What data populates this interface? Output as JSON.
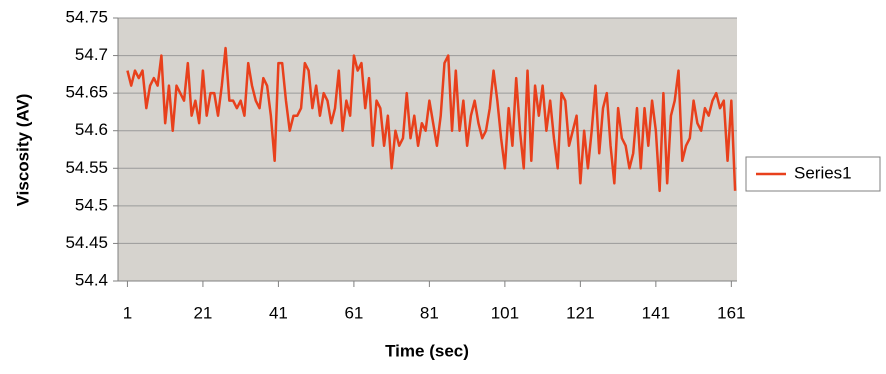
{
  "chart_data": {
    "type": "line",
    "x_label": "Time (sec)",
    "y_label": "Viscosity (AV)",
    "x": [
      1,
      2,
      3,
      4,
      5,
      6,
      7,
      8,
      9,
      10,
      11,
      12,
      13,
      14,
      15,
      16,
      17,
      18,
      19,
      20,
      21,
      22,
      23,
      24,
      25,
      26,
      27,
      28,
      29,
      30,
      31,
      32,
      33,
      34,
      35,
      36,
      37,
      38,
      39,
      40,
      41,
      42,
      43,
      44,
      45,
      46,
      47,
      48,
      49,
      50,
      51,
      52,
      53,
      54,
      55,
      56,
      57,
      58,
      59,
      60,
      61,
      62,
      63,
      64,
      65,
      66,
      67,
      68,
      69,
      70,
      71,
      72,
      73,
      74,
      75,
      76,
      77,
      78,
      79,
      80,
      81,
      82,
      83,
      84,
      85,
      86,
      87,
      88,
      89,
      90,
      91,
      92,
      93,
      94,
      95,
      96,
      97,
      98,
      99,
      100,
      101,
      102,
      103,
      104,
      105,
      106,
      107,
      108,
      109,
      110,
      111,
      112,
      113,
      114,
      115,
      116,
      117,
      118,
      119,
      120,
      121,
      122,
      123,
      124,
      125,
      126,
      127,
      128,
      129,
      130,
      131,
      132,
      133,
      134,
      135,
      136,
      137,
      138,
      139,
      140,
      141,
      142,
      143,
      144,
      145,
      146,
      147,
      148,
      149,
      150,
      151,
      152,
      153,
      154,
      155,
      156,
      157,
      158,
      159,
      160,
      161,
      162
    ],
    "series": [
      {
        "name": "Series1",
        "color": "#e8401c",
        "values": [
          54.68,
          54.66,
          54.68,
          54.67,
          54.68,
          54.63,
          54.66,
          54.67,
          54.66,
          54.7,
          54.61,
          54.66,
          54.6,
          54.66,
          54.65,
          54.64,
          54.69,
          54.62,
          54.64,
          54.61,
          54.68,
          54.62,
          54.65,
          54.65,
          54.62,
          54.66,
          54.71,
          54.64,
          54.64,
          54.63,
          54.64,
          54.62,
          54.69,
          54.66,
          54.64,
          54.63,
          54.67,
          54.66,
          54.62,
          54.56,
          54.69,
          54.69,
          54.64,
          54.6,
          54.62,
          54.62,
          54.63,
          54.69,
          54.68,
          54.63,
          54.66,
          54.62,
          54.65,
          54.64,
          54.61,
          54.63,
          54.68,
          54.6,
          54.64,
          54.62,
          54.7,
          54.68,
          54.69,
          54.63,
          54.67,
          54.58,
          54.64,
          54.63,
          54.58,
          54.62,
          54.55,
          54.6,
          54.58,
          54.59,
          54.65,
          54.59,
          54.62,
          54.58,
          54.61,
          54.6,
          54.64,
          54.61,
          54.58,
          54.62,
          54.69,
          54.7,
          54.6,
          54.68,
          54.6,
          54.64,
          54.58,
          54.62,
          54.64,
          54.61,
          54.59,
          54.6,
          54.63,
          54.68,
          54.64,
          54.59,
          54.55,
          54.63,
          54.58,
          54.67,
          54.6,
          54.55,
          54.68,
          54.56,
          54.66,
          54.62,
          54.66,
          54.6,
          54.64,
          54.59,
          54.55,
          54.65,
          54.64,
          54.58,
          54.6,
          54.62,
          54.53,
          54.6,
          54.55,
          54.6,
          54.66,
          54.57,
          54.63,
          54.65,
          54.58,
          54.53,
          54.63,
          54.59,
          54.58,
          54.55,
          54.57,
          54.63,
          54.55,
          54.63,
          54.58,
          54.64,
          54.6,
          54.52,
          54.65,
          54.53,
          54.62,
          54.64,
          54.68,
          54.56,
          54.58,
          54.59,
          54.64,
          54.61,
          54.6,
          54.63,
          54.62,
          54.64,
          54.65,
          54.63,
          54.64,
          54.56,
          54.64,
          54.52
        ]
      }
    ],
    "xlim": [
      -1.5,
      162.5
    ],
    "xticks": [
      1,
      21,
      41,
      61,
      81,
      101,
      121,
      141,
      161
    ],
    "ylim": [
      54.4,
      54.75
    ],
    "yticks": [
      54.4,
      54.45,
      54.5,
      54.55,
      54.6,
      54.65,
      54.7,
      54.75
    ],
    "grid": true,
    "legend": "right"
  }
}
